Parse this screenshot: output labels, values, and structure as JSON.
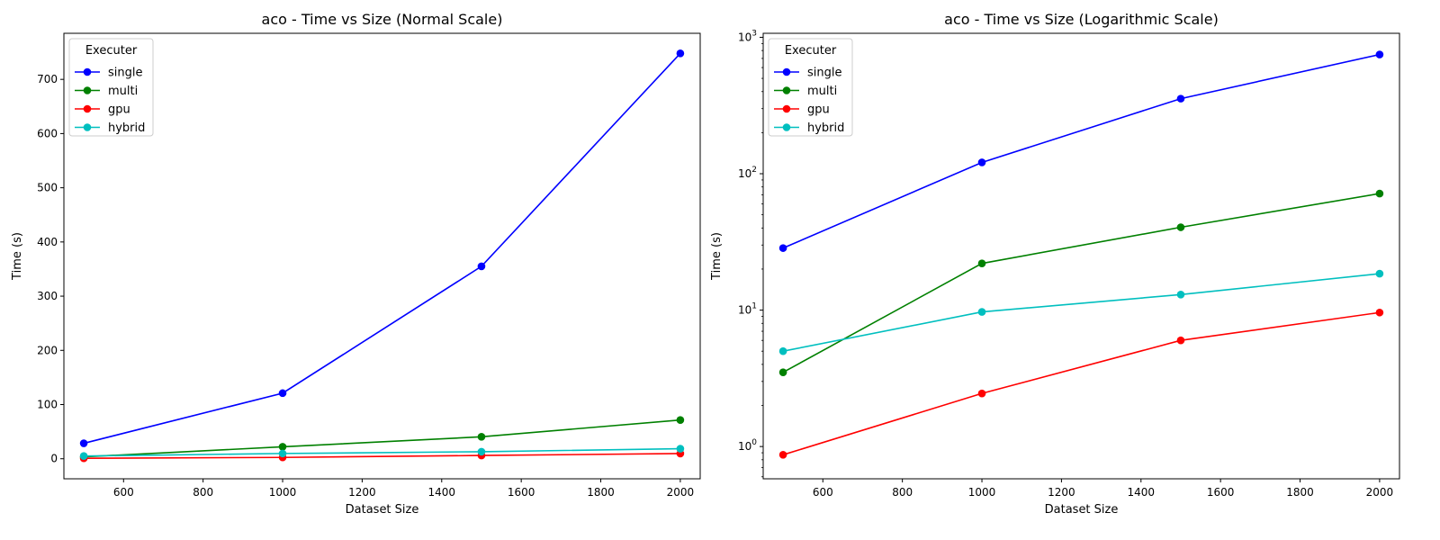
{
  "chart_data": [
    {
      "type": "line",
      "title": "aco - Time vs Size (Normal Scale)",
      "xlabel": "Dataset Size",
      "ylabel": "Time (s)",
      "yscale": "linear",
      "x": [
        500,
        1000,
        1500,
        2000
      ],
      "xlim": [
        450,
        2050
      ],
      "ylim": [
        -37,
        785
      ],
      "xticks": [
        600,
        800,
        1000,
        1200,
        1400,
        1600,
        1800,
        2000
      ],
      "yticks": [
        0,
        100,
        200,
        300,
        400,
        500,
        600,
        700
      ],
      "legend": {
        "title": "Executer",
        "loc": "upper left"
      },
      "series": [
        {
          "name": "single",
          "color": "#0000ff",
          "values": [
            28.5,
            121,
            355,
            748
          ]
        },
        {
          "name": "multi",
          "color": "#008000",
          "values": [
            3.5,
            22,
            40.5,
            71.5
          ]
        },
        {
          "name": "gpu",
          "color": "#ff0000",
          "values": [
            0.87,
            2.45,
            6.0,
            9.6
          ]
        },
        {
          "name": "hybrid",
          "color": "#00bfbf",
          "values": [
            5.0,
            9.7,
            13.0,
            18.5
          ]
        }
      ]
    },
    {
      "type": "line",
      "title": "aco - Time vs Size (Logarithmic Scale)",
      "xlabel": "Dataset Size",
      "ylabel": "Time (s)",
      "yscale": "log",
      "x": [
        500,
        1000,
        1500,
        2000
      ],
      "xlim": [
        450,
        2050
      ],
      "ylim": [
        0.58,
        1070
      ],
      "xticks": [
        600,
        800,
        1000,
        1200,
        1400,
        1600,
        1800,
        2000
      ],
      "yticks": [
        1,
        10,
        100,
        1000
      ],
      "ytick_labels": [
        [
          "10",
          "0"
        ],
        [
          "10",
          "1"
        ],
        [
          "10",
          "2"
        ],
        [
          "10",
          "3"
        ]
      ],
      "legend": {
        "title": "Executer",
        "loc": "upper left"
      },
      "series": [
        {
          "name": "single",
          "color": "#0000ff",
          "values": [
            28.5,
            121,
            355,
            748
          ]
        },
        {
          "name": "multi",
          "color": "#008000",
          "values": [
            3.5,
            22,
            40.5,
            71.5
          ]
        },
        {
          "name": "gpu",
          "color": "#ff0000",
          "values": [
            0.87,
            2.45,
            6.0,
            9.6
          ]
        },
        {
          "name": "hybrid",
          "color": "#00bfbf",
          "values": [
            5.0,
            9.7,
            13.0,
            18.5
          ]
        }
      ]
    }
  ]
}
